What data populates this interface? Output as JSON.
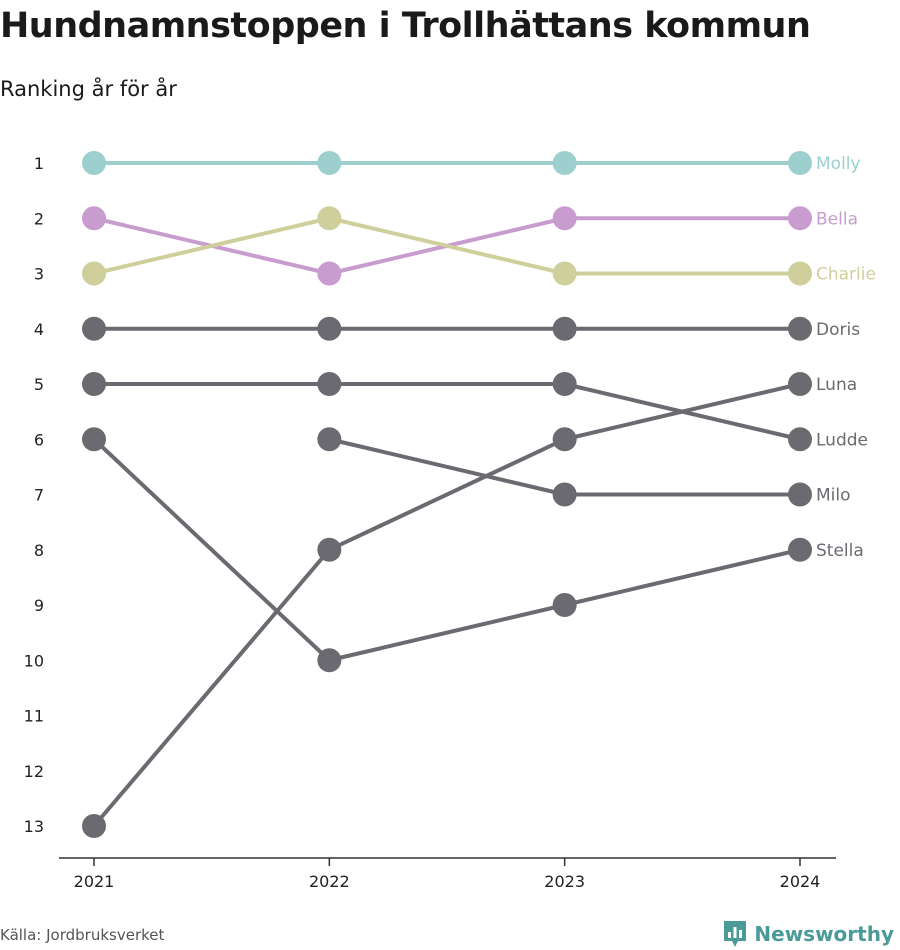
{
  "header": {
    "title": "Hundnamnstoppen i Trollhättans kommun",
    "subtitle": "Ranking år för år"
  },
  "footer": {
    "source": "Källa: Jordbruksverket",
    "brand": "Newsworthy"
  },
  "colors": {
    "molly": "#9ccfcd",
    "bella": "#c99ccf",
    "charlie": "#cfcf9c",
    "other": "#6b6a70",
    "axis": "#333333",
    "brand": "#4a9a98"
  },
  "chart_data": {
    "type": "line",
    "subtype": "bump",
    "x": [
      "2021",
      "2022",
      "2023",
      "2024"
    ],
    "y_ticks": [
      "1",
      "2",
      "3",
      "4",
      "5",
      "6",
      "7",
      "8",
      "9",
      "10",
      "11",
      "12",
      "13"
    ],
    "ylim": [
      1,
      13
    ],
    "y_reversed": true,
    "legend": "end-labels",
    "series": [
      {
        "name": "Molly",
        "color": "#9ccfcd",
        "values": [
          1,
          1,
          1,
          1
        ]
      },
      {
        "name": "Bella",
        "color": "#c99ccf",
        "values": [
          2,
          3,
          2,
          2
        ]
      },
      {
        "name": "Charlie",
        "color": "#cfcf9c",
        "values": [
          3,
          2,
          3,
          3
        ]
      },
      {
        "name": "Doris",
        "color": "#6b6a70",
        "values": [
          4,
          4,
          4,
          4
        ]
      },
      {
        "name": "Luna",
        "color": "#6b6a70",
        "values": [
          13,
          8,
          6,
          5
        ]
      },
      {
        "name": "Ludde",
        "color": "#6b6a70",
        "values": [
          5,
          5,
          5,
          6
        ]
      },
      {
        "name": "Milo",
        "color": "#6b6a70",
        "values": [
          null,
          6,
          7,
          7
        ]
      },
      {
        "name": "Stella",
        "color": "#6b6a70",
        "values": [
          6,
          10,
          9,
          8
        ]
      }
    ]
  }
}
